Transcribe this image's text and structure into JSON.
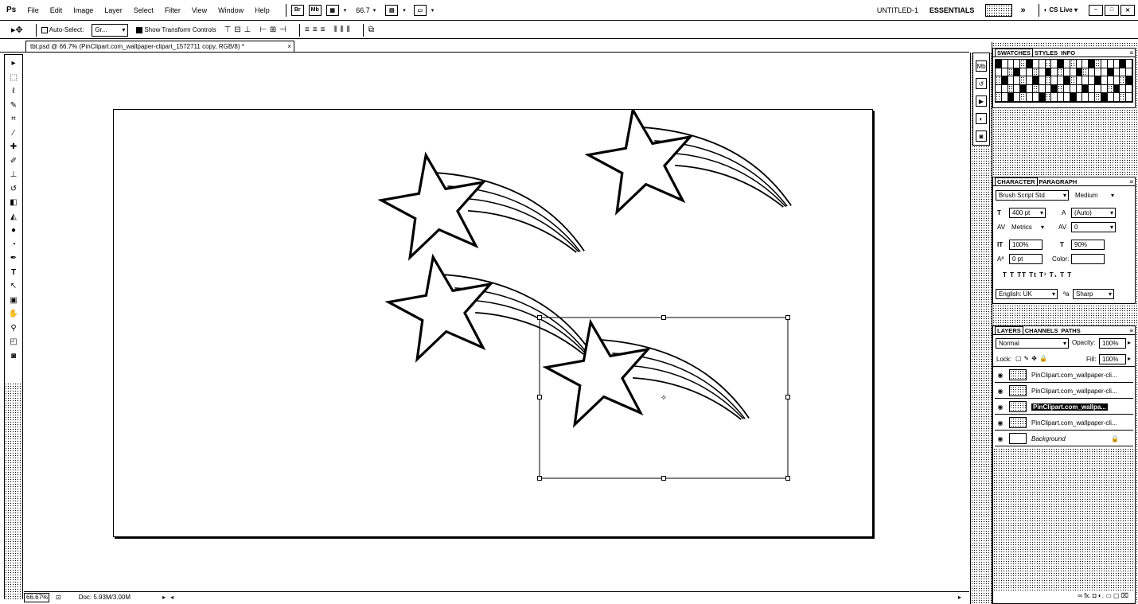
{
  "menubar": {
    "logo": "Ps",
    "items": [
      "File",
      "Edit",
      "Image",
      "Layer",
      "Select",
      "Filter",
      "View",
      "Window",
      "Help"
    ],
    "bridge_btn": "Br",
    "minibridge_btn": "Mb",
    "zoom": "66.7",
    "doc_name": "UNTITLED-1",
    "workspace": "ESSENTIALS",
    "cs_live": "CS Live"
  },
  "options": {
    "auto_select": "Auto-Select:",
    "auto_select_value": "Gr...",
    "show_transform": "Show Transform Controls"
  },
  "document": {
    "tab_title": "tbt.psd @ 66.7% (PinClipart.com_wallpaper-clipart_1572711 copy, RGB/8) *",
    "close": "×"
  },
  "status": {
    "zoom": "66.67%",
    "doc": "Doc: 5.93M/3.00M"
  },
  "swatches_panel": {
    "tabs": [
      "SWATCHES",
      "STYLES",
      "INFO"
    ]
  },
  "character_panel": {
    "tabs": [
      "CHARACTER",
      "PARAGRAPH"
    ],
    "font_family": "Brush Script Std",
    "font_style": "Medium",
    "font_size": "400 pt",
    "leading": "(Auto)",
    "kerning": "Metrics",
    "tracking": "0",
    "vertical_scale": "100%",
    "horizontal_scale": "90%",
    "baseline_shift": "0 pt",
    "color_label": "Color:",
    "type_styles": "T  T  TT  Tt  T¹  T₁  T  T",
    "language": "English: UK",
    "aa_label": "a",
    "antialias": "Sharp"
  },
  "layers_panel": {
    "tabs": [
      "LAYERS",
      "CHANNELS",
      "PATHS"
    ],
    "blend_mode": "Normal",
    "opacity_label": "Opacity:",
    "opacity": "100%",
    "lock_label": "Lock:",
    "fill_label": "Fill:",
    "fill": "100%",
    "layers": [
      "PinClipart.com_wallpaper-cli...",
      "PinClipart.com_wallpaper-cli...",
      "PinClipart.com_wallpa...",
      "PinClipart.com_wallpaper-cli...",
      "Background"
    ],
    "footer_icons": "∞  fx.  ◘  ◐.  ▭  ▢  ⌧"
  }
}
